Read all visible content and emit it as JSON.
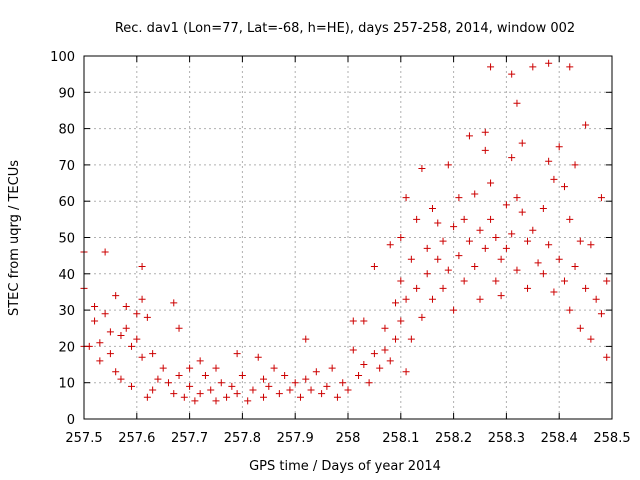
{
  "chart_data": {
    "type": "scatter",
    "title": "Rec. dav1 (Lon=77, Lat=-68, h=HE), days 257-258, 2014, window 002",
    "xlabel": "GPS time / Days of year 2014",
    "ylabel": "STEC from uqrg / TECUs",
    "xlim": [
      257.5,
      258.5
    ],
    "ylim": [
      0,
      100
    ],
    "xticks": [
      257.5,
      257.6,
      257.7,
      257.8,
      257.9,
      258.0,
      258.1,
      258.2,
      258.3,
      258.4,
      258.5
    ],
    "xtick_labels": [
      "257.5",
      "257.6",
      "257.7",
      "257.8",
      "257.9",
      "258",
      "258.1",
      "258.2",
      "258.3",
      "258.4",
      "258.5"
    ],
    "yticks": [
      0,
      10,
      20,
      30,
      40,
      50,
      60,
      70,
      80,
      90,
      100
    ],
    "ytick_labels": [
      "0",
      "10",
      "20",
      "30",
      "40",
      "50",
      "60",
      "70",
      "80",
      "90",
      "100"
    ],
    "grid": true,
    "marker": "+",
    "color": "#cc0000",
    "points": [
      [
        257.5,
        46
      ],
      [
        257.5,
        36
      ],
      [
        257.5,
        20
      ],
      [
        257.51,
        20
      ],
      [
        257.52,
        31
      ],
      [
        257.52,
        27
      ],
      [
        257.53,
        21
      ],
      [
        257.53,
        16
      ],
      [
        257.54,
        46
      ],
      [
        257.54,
        29
      ],
      [
        257.55,
        24
      ],
      [
        257.55,
        18
      ],
      [
        257.56,
        34
      ],
      [
        257.56,
        13
      ],
      [
        257.57,
        23
      ],
      [
        257.57,
        11
      ],
      [
        257.58,
        31
      ],
      [
        257.58,
        25
      ],
      [
        257.59,
        20
      ],
      [
        257.59,
        9
      ],
      [
        257.6,
        29
      ],
      [
        257.6,
        22
      ],
      [
        257.61,
        33
      ],
      [
        257.61,
        42
      ],
      [
        257.61,
        17
      ],
      [
        257.62,
        28
      ],
      [
        257.62,
        6
      ],
      [
        257.63,
        18
      ],
      [
        257.63,
        8
      ],
      [
        257.64,
        11
      ],
      [
        257.65,
        14
      ],
      [
        257.66,
        10
      ],
      [
        257.67,
        32
      ],
      [
        257.67,
        7
      ],
      [
        257.68,
        25
      ],
      [
        257.68,
        12
      ],
      [
        257.69,
        6
      ],
      [
        257.7,
        14
      ],
      [
        257.7,
        9
      ],
      [
        257.71,
        5
      ],
      [
        257.72,
        16
      ],
      [
        257.72,
        7
      ],
      [
        257.73,
        12
      ],
      [
        257.74,
        8
      ],
      [
        257.75,
        14
      ],
      [
        257.75,
        5
      ],
      [
        257.76,
        10
      ],
      [
        257.77,
        6
      ],
      [
        257.78,
        9
      ],
      [
        257.79,
        18
      ],
      [
        257.79,
        7
      ],
      [
        257.8,
        12
      ],
      [
        257.81,
        5
      ],
      [
        257.82,
        8
      ],
      [
        257.83,
        17
      ],
      [
        257.84,
        11
      ],
      [
        257.84,
        6
      ],
      [
        257.85,
        9
      ],
      [
        257.86,
        14
      ],
      [
        257.87,
        7
      ],
      [
        257.88,
        12
      ],
      [
        257.89,
        8
      ],
      [
        257.9,
        10
      ],
      [
        257.91,
        6
      ],
      [
        257.92,
        22
      ],
      [
        257.92,
        11
      ],
      [
        257.93,
        8
      ],
      [
        257.94,
        13
      ],
      [
        257.95,
        7
      ],
      [
        257.96,
        9
      ],
      [
        257.97,
        14
      ],
      [
        257.98,
        6
      ],
      [
        257.99,
        10
      ],
      [
        258.0,
        8
      ],
      [
        258.01,
        19
      ],
      [
        258.01,
        27
      ],
      [
        258.02,
        12
      ],
      [
        258.03,
        27
      ],
      [
        258.03,
        15
      ],
      [
        258.04,
        10
      ],
      [
        258.05,
        42
      ],
      [
        258.05,
        18
      ],
      [
        258.06,
        14
      ],
      [
        258.07,
        25
      ],
      [
        258.07,
        19
      ],
      [
        258.08,
        48
      ],
      [
        258.08,
        16
      ],
      [
        258.09,
        32
      ],
      [
        258.09,
        22
      ],
      [
        258.1,
        50
      ],
      [
        258.1,
        38
      ],
      [
        258.1,
        27
      ],
      [
        258.11,
        61
      ],
      [
        258.11,
        33
      ],
      [
        258.11,
        13
      ],
      [
        258.12,
        44
      ],
      [
        258.12,
        22
      ],
      [
        258.13,
        55
      ],
      [
        258.13,
        36
      ],
      [
        258.14,
        69
      ],
      [
        258.14,
        28
      ],
      [
        258.15,
        47
      ],
      [
        258.15,
        40
      ],
      [
        258.16,
        58
      ],
      [
        258.16,
        33
      ],
      [
        258.17,
        54
      ],
      [
        258.17,
        44
      ],
      [
        258.18,
        49
      ],
      [
        258.18,
        36
      ],
      [
        258.19,
        70
      ],
      [
        258.19,
        41
      ],
      [
        258.2,
        53
      ],
      [
        258.2,
        30
      ],
      [
        258.21,
        61
      ],
      [
        258.21,
        45
      ],
      [
        258.22,
        55
      ],
      [
        258.22,
        38
      ],
      [
        258.23,
        78
      ],
      [
        258.23,
        49
      ],
      [
        258.24,
        62
      ],
      [
        258.24,
        42
      ],
      [
        258.25,
        52
      ],
      [
        258.25,
        33
      ],
      [
        258.26,
        79
      ],
      [
        258.26,
        74
      ],
      [
        258.26,
        47
      ],
      [
        258.27,
        97
      ],
      [
        258.27,
        65
      ],
      [
        258.27,
        55
      ],
      [
        258.28,
        50
      ],
      [
        258.28,
        38
      ],
      [
        258.29,
        44
      ],
      [
        258.29,
        34
      ],
      [
        258.3,
        59
      ],
      [
        258.3,
        47
      ],
      [
        258.31,
        95
      ],
      [
        258.31,
        72
      ],
      [
        258.31,
        51
      ],
      [
        258.32,
        87
      ],
      [
        258.32,
        61
      ],
      [
        258.32,
        41
      ],
      [
        258.33,
        76
      ],
      [
        258.33,
        57
      ],
      [
        258.34,
        49
      ],
      [
        258.34,
        36
      ],
      [
        258.35,
        97
      ],
      [
        258.35,
        52
      ],
      [
        258.36,
        43
      ],
      [
        258.37,
        58
      ],
      [
        258.37,
        40
      ],
      [
        258.38,
        98
      ],
      [
        258.38,
        71
      ],
      [
        258.38,
        48
      ],
      [
        258.39,
        66
      ],
      [
        258.39,
        35
      ],
      [
        258.4,
        75
      ],
      [
        258.4,
        44
      ],
      [
        258.41,
        64
      ],
      [
        258.41,
        38
      ],
      [
        258.42,
        97
      ],
      [
        258.42,
        55
      ],
      [
        258.42,
        30
      ],
      [
        258.43,
        70
      ],
      [
        258.43,
        42
      ],
      [
        258.44,
        49
      ],
      [
        258.44,
        25
      ],
      [
        258.45,
        81
      ],
      [
        258.45,
        36
      ],
      [
        258.46,
        48
      ],
      [
        258.46,
        22
      ],
      [
        258.47,
        33
      ],
      [
        258.48,
        61
      ],
      [
        258.48,
        29
      ],
      [
        258.49,
        38
      ],
      [
        258.49,
        17
      ]
    ]
  }
}
